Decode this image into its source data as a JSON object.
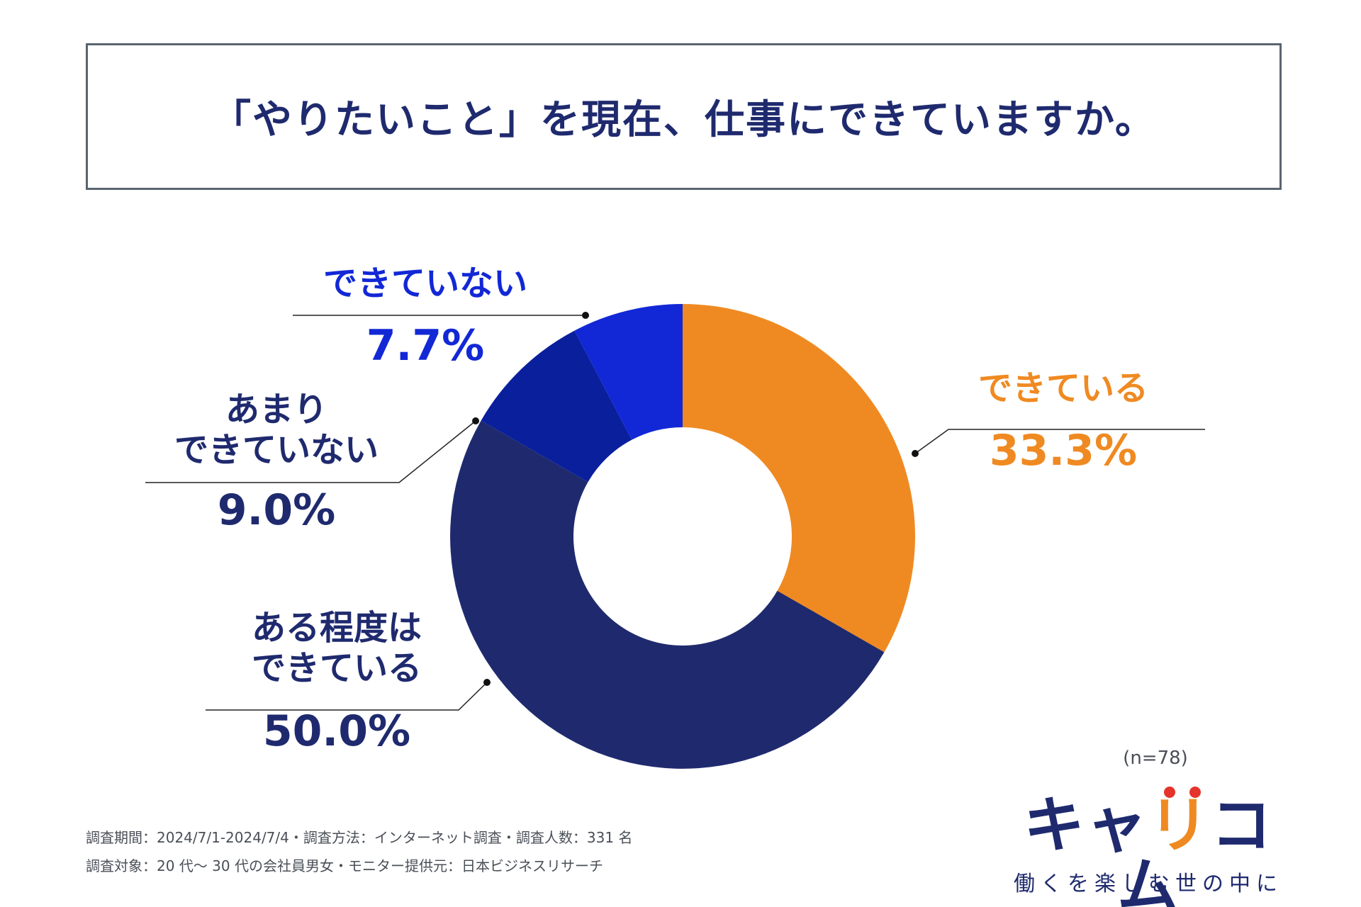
{
  "title": "「やりたいこと」を現在、仕事にできていますか。",
  "chart_data": {
    "type": "pie",
    "variant": "donut",
    "title": "「やりたいこと」を現在、仕事にできていますか。",
    "start": "12 o'clock, clockwise",
    "categories": [
      "できている",
      "ある程度はできている",
      "あまりできていない",
      "できていない"
    ],
    "labels": [
      {
        "lines": [
          "できている"
        ],
        "value_text": "33.3%"
      },
      {
        "lines": [
          "ある程度は",
          "できている"
        ],
        "value_text": "50.0%"
      },
      {
        "lines": [
          "あまり",
          "できていない"
        ],
        "value_text": "9.0%"
      },
      {
        "lines": [
          "できていない"
        ],
        "value_text": "7.7%"
      }
    ],
    "values": [
      33.3,
      50.0,
      9.0,
      7.7
    ],
    "colors": [
      "#ef8a22",
      "#1f2a6e",
      "#0a1f9c",
      "#1228d6"
    ],
    "label_colors": [
      "#ef8a22",
      "#1f2a6e",
      "#1f2a6e",
      "#1228d6"
    ],
    "sample_size": "(n=78)"
  },
  "footnotes": [
    "調査期間：2024/7/1-2024/7/4・調査方法：インターネット調査・調査人数：331 名",
    "調査対象：20 代〜 30 代の会社員男女・モニター提供元：日本ビジネスリサーチ"
  ],
  "logo": {
    "part1": "キャ",
    "part2": "リ",
    "part3": "コム",
    "tagline": "働くを楽しむ世の中に"
  }
}
